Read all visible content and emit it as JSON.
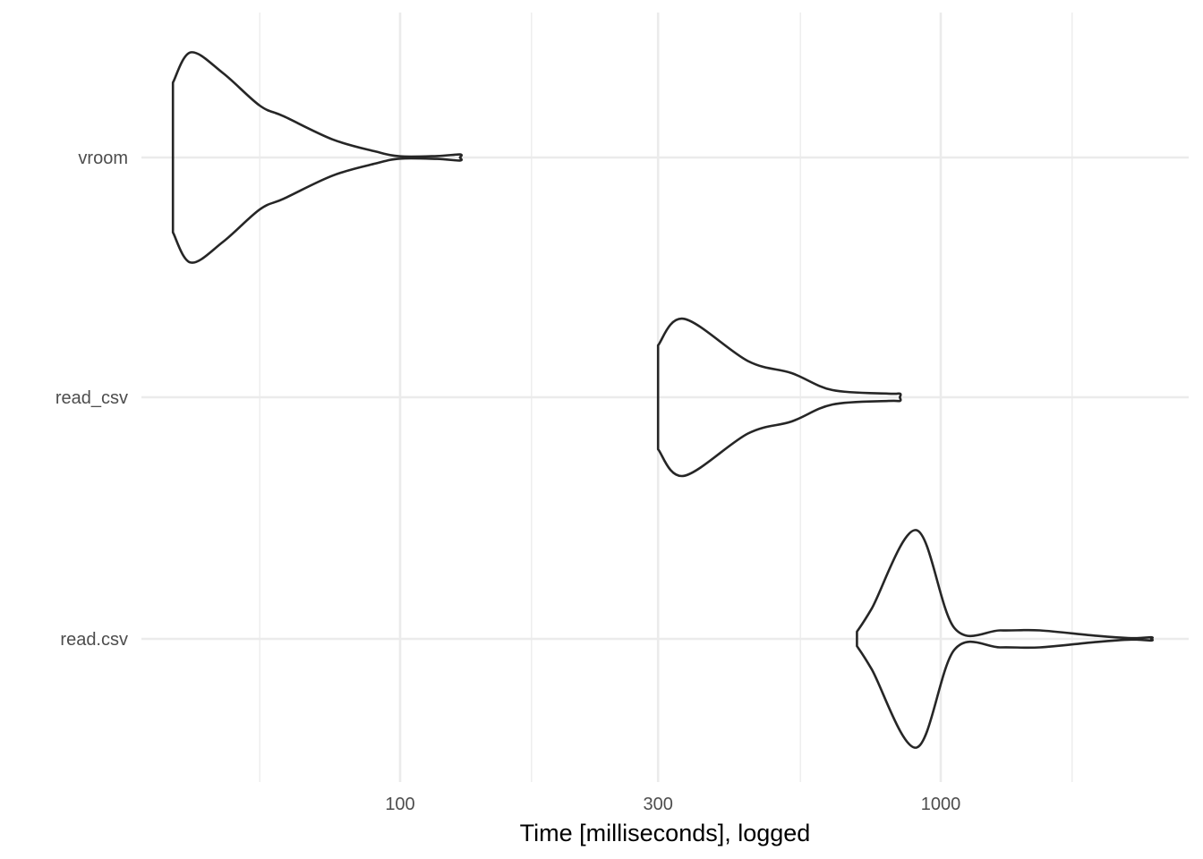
{
  "chart_data": {
    "type": "violin",
    "orientation": "horizontal",
    "title": "",
    "xlabel": "Time [milliseconds], logged",
    "ylabel": "",
    "x_scale": "log10",
    "xlim": [
      30,
      2700
    ],
    "x_ticks": [
      {
        "value": 100,
        "label": "100"
      },
      {
        "value": 300,
        "label": "300"
      },
      {
        "value": 1000,
        "label": "1000"
      }
    ],
    "x_minor_gridlines": [
      55,
      175,
      550,
      1750
    ],
    "categories": [
      "vroom",
      "read_csv",
      "read.csv"
    ],
    "grid": true,
    "legend": "none",
    "colors": {
      "outline": "#262626",
      "grid": "#ebebeb",
      "background": "#ffffff",
      "tick_text": "#4d4d4d"
    },
    "series": [
      {
        "category": "vroom",
        "profile": [
          [
            38,
            0.62
          ],
          [
            41,
            0.87
          ],
          [
            47,
            0.7
          ],
          [
            55,
            0.43
          ],
          [
            61,
            0.34
          ],
          [
            75,
            0.15
          ],
          [
            90,
            0.05
          ],
          [
            100,
            0.01
          ],
          [
            117,
            0.012
          ],
          [
            129,
            0.025
          ],
          [
            129,
            0.0
          ]
        ]
      },
      {
        "category": "read_csv",
        "profile": [
          [
            300,
            0.43
          ],
          [
            335,
            0.65
          ],
          [
            440,
            0.3
          ],
          [
            530,
            0.2
          ],
          [
            630,
            0.06
          ],
          [
            800,
            0.03
          ],
          [
            840,
            0.03
          ],
          [
            840,
            0.0
          ]
        ]
      },
      {
        "category": "read.csv",
        "profile": [
          [
            700,
            0.06
          ],
          [
            745,
            0.25
          ],
          [
            902,
            0.9
          ],
          [
            1060,
            0.09
          ],
          [
            1290,
            0.07
          ],
          [
            1525,
            0.07
          ],
          [
            1945,
            0.025
          ],
          [
            2250,
            0.006
          ],
          [
            2450,
            0.013
          ],
          [
            2450,
            0.0
          ]
        ]
      }
    ]
  }
}
